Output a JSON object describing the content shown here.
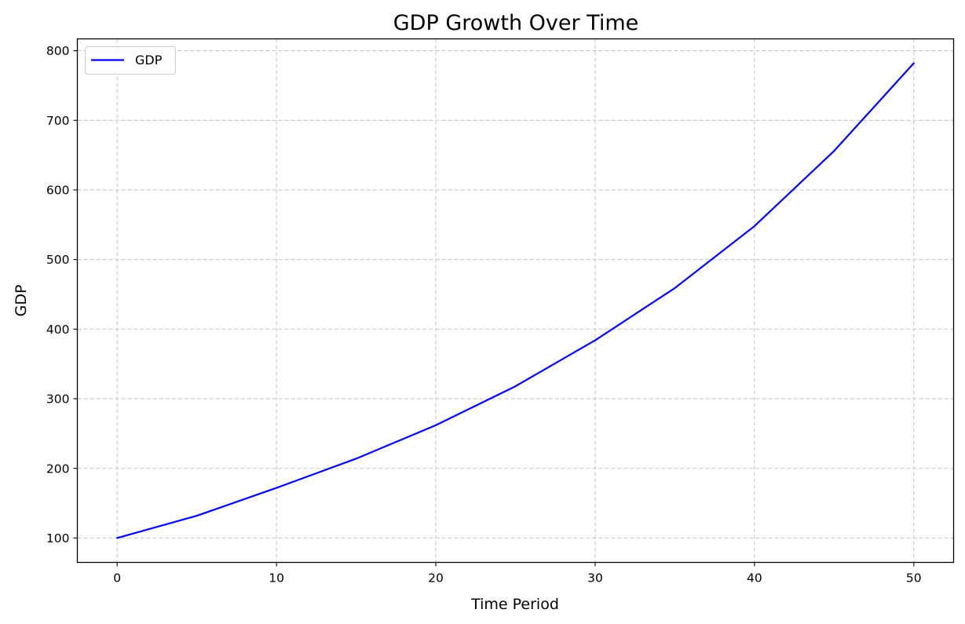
{
  "chart_data": {
    "type": "line",
    "title": "GDP Growth Over Time",
    "xlabel": "Time Period",
    "ylabel": "GDP",
    "xlim": [
      -2.5,
      52.5
    ],
    "ylim": [
      65,
      817
    ],
    "xticks": [
      0,
      10,
      20,
      30,
      40,
      50
    ],
    "yticks": [
      100,
      200,
      300,
      400,
      500,
      600,
      700,
      800
    ],
    "grid": true,
    "legend_position": "upper-left",
    "series": [
      {
        "name": "GDP",
        "color": "#0000ff",
        "x": [
          0,
          5,
          10,
          15,
          20,
          25,
          30,
          35,
          40,
          45,
          50
        ],
        "y": [
          100,
          132,
          172,
          214,
          262,
          318,
          384,
          459,
          548,
          656,
          782
        ]
      }
    ]
  }
}
